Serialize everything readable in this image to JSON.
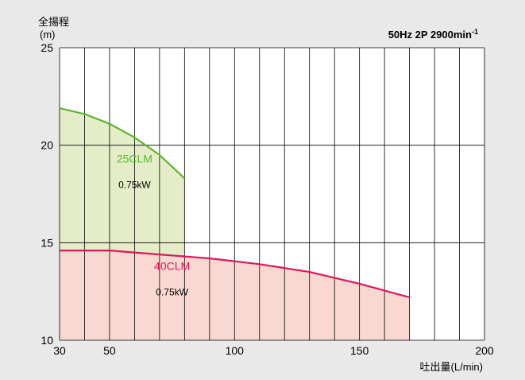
{
  "chart_data": {
    "type": "area",
    "ylabel": "全揚程",
    "yunit": "(m)",
    "xlabel": "吐出量(L/min)",
    "note": "50Hz 2P 2900min",
    "note_sup": "-1",
    "xlim": [
      30,
      200
    ],
    "ylim": [
      10,
      25
    ],
    "x_ticks": [
      30,
      50,
      100,
      150,
      200
    ],
    "y_ticks": [
      10,
      15,
      20,
      25
    ],
    "x_grid": [
      30,
      40,
      50,
      60,
      70,
      80,
      90,
      100,
      110,
      120,
      130,
      140,
      150,
      160,
      170,
      180,
      190,
      200
    ],
    "y_grid": [
      10,
      15,
      20,
      25
    ],
    "grid": true,
    "series": [
      {
        "name": "25CLM",
        "power": "0.75kW",
        "color": "#5cb531",
        "fill": "#e4edc7",
        "points": [
          [
            30,
            21.9
          ],
          [
            40,
            21.6
          ],
          [
            50,
            21.1
          ],
          [
            60,
            20.4
          ],
          [
            70,
            19.5
          ],
          [
            80,
            18.3
          ]
        ]
      },
      {
        "name": "40CLM",
        "power": "0.75kW",
        "color": "#e0165a",
        "fill": "#f8d8d0",
        "points": [
          [
            30,
            14.6
          ],
          [
            50,
            14.6
          ],
          [
            70,
            14.4
          ],
          [
            90,
            14.2
          ],
          [
            110,
            13.9
          ],
          [
            130,
            13.5
          ],
          [
            150,
            12.9
          ],
          [
            170,
            12.2
          ]
        ]
      }
    ],
    "label_positions_data": {
      "25CLM": {
        "name": [
          60,
          19.1
        ],
        "power": [
          60,
          17.8
        ]
      },
      "40CLM": {
        "name": [
          75,
          13.6
        ],
        "power": [
          75,
          12.3
        ]
      }
    }
  }
}
